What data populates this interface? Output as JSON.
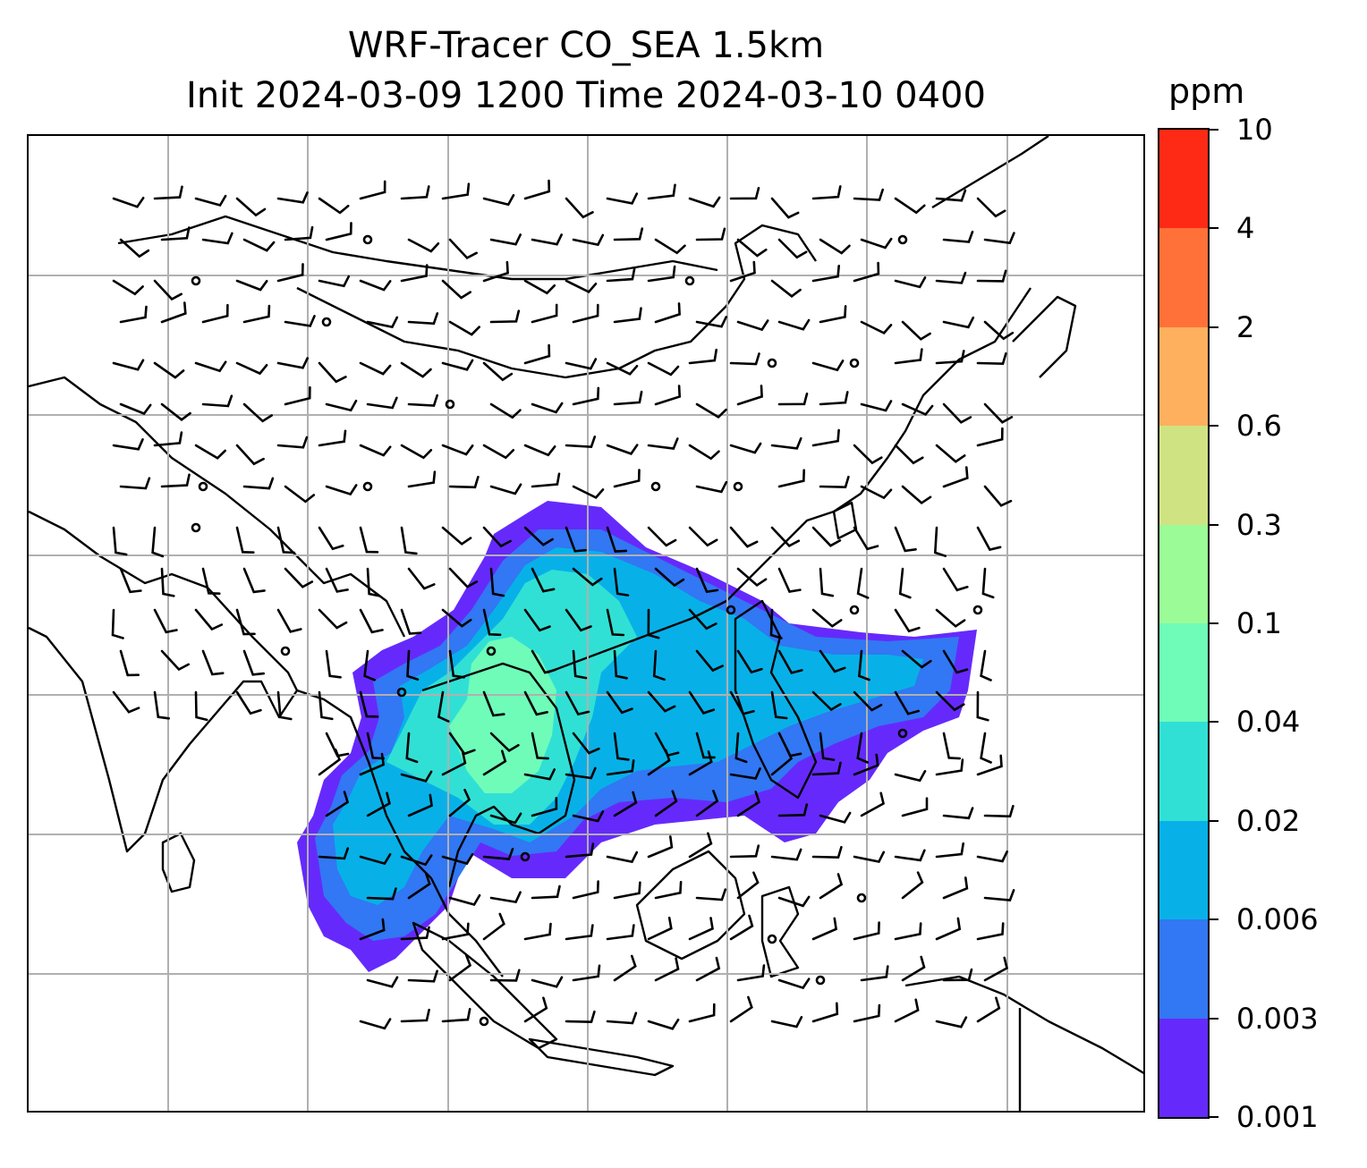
{
  "title_line1": "WRF-Tracer CO_SEA 1.5km",
  "title_line2": "Init 2024-03-09 1200 Time 2024-03-10 0400",
  "colorbar": {
    "unit": "ppm",
    "levels": [
      "0.001",
      "0.003",
      "0.006",
      "0.02",
      "0.04",
      "0.1",
      "0.3",
      "0.6",
      "2",
      "4",
      "10"
    ],
    "colors": [
      "#652afb",
      "#3277f3",
      "#07b1e8",
      "#31e0d5",
      "#6ffcb9",
      "#9bfc97",
      "#d0e383",
      "#ffb05f",
      "#ff7139",
      "#ff2a15"
    ]
  },
  "map": {
    "gridlines": "on",
    "wind_barbs": "on",
    "coastlines": "on"
  }
}
